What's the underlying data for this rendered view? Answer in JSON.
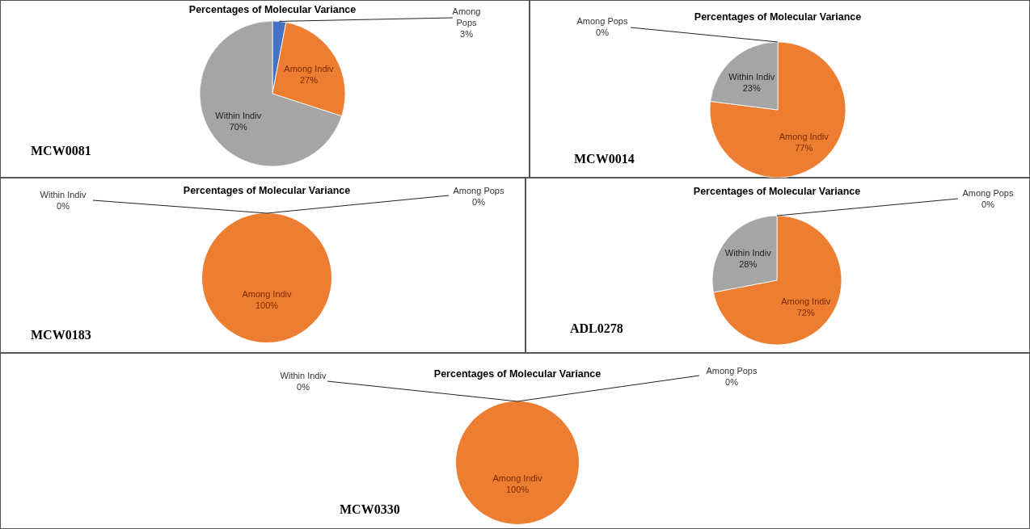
{
  "chart_data": [
    {
      "type": "pie",
      "title": "Percentages of Molecular Variance",
      "categories": [
        "Among Pops",
        "Among Indiv",
        "Within Indiv"
      ],
      "values": [
        3,
        27,
        70
      ],
      "colors": [
        "#4472c4",
        "#ed7d31",
        "#a5a5a5"
      ],
      "value_labels": [
        "3%",
        "27%",
        "70%"
      ],
      "annotations": [
        "MCW0081"
      ]
    },
    {
      "type": "pie",
      "title": "Percentages of Molecular Variance",
      "categories": [
        "Among Pops",
        "Among Indiv",
        "Within Indiv"
      ],
      "values": [
        0,
        77,
        23
      ],
      "colors": [
        null,
        "#ed7d31",
        "#a5a5a5"
      ],
      "value_labels": [
        "0%",
        "77%",
        "23%"
      ],
      "annotations": [
        "MCW0014"
      ]
    },
    {
      "type": "pie",
      "title": "Percentages of Molecular Variance",
      "categories": [
        "Among Pops",
        "Among Indiv",
        "Within Indiv"
      ],
      "values": [
        0,
        100,
        0
      ],
      "colors": [
        null,
        "#ed7d31",
        null
      ],
      "value_labels": [
        "0%",
        "100%",
        "0%"
      ],
      "annotations": [
        "MCW0183"
      ]
    },
    {
      "type": "pie",
      "title": "Percentages of Molecular Variance",
      "categories": [
        "Among Pops",
        "Among Indiv",
        "Within Indiv"
      ],
      "values": [
        0,
        72,
        28
      ],
      "colors": [
        null,
        "#ed7d31",
        "#a5a5a5"
      ],
      "value_labels": [
        "0%",
        "72%",
        "28%"
      ],
      "annotations": [
        "ADL0278"
      ]
    },
    {
      "type": "pie",
      "title": "Percentages of Molecular Variance",
      "categories": [
        "Among Pops",
        "Among Indiv",
        "Within Indiv"
      ],
      "values": [
        0,
        100,
        0
      ],
      "colors": [
        null,
        "#ed7d31",
        null
      ],
      "value_labels": [
        "0%",
        "100%",
        "0%"
      ],
      "annotations": [
        "MCW0330"
      ]
    }
  ]
}
